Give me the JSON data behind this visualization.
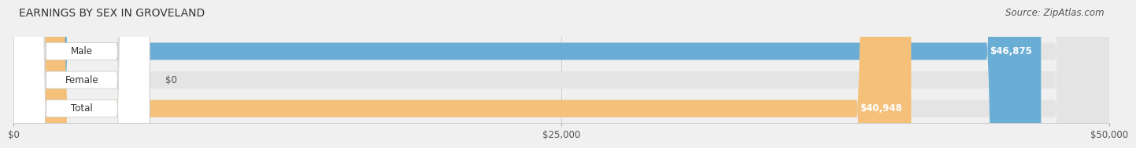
{
  "title": "EARNINGS BY SEX IN GROVELAND",
  "source": "Source: ZipAtlas.com",
  "categories": [
    "Male",
    "Female",
    "Total"
  ],
  "values": [
    46875,
    0,
    40948
  ],
  "max_value": 50000,
  "bar_colors": [
    "#6aaed6",
    "#f4a0b0",
    "#f5c07a"
  ],
  "label_values": [
    "$46,875",
    "$0",
    "$40,948"
  ],
  "x_ticks": [
    0,
    25000,
    50000
  ],
  "x_tick_labels": [
    "$0",
    "$25,000",
    "$50,000"
  ],
  "background_color": "#f0f0f0",
  "bar_bg_color": "#e4e4e4",
  "title_fontsize": 10,
  "source_fontsize": 8.5,
  "label_fontsize": 8.5,
  "tick_fontsize": 8.5
}
